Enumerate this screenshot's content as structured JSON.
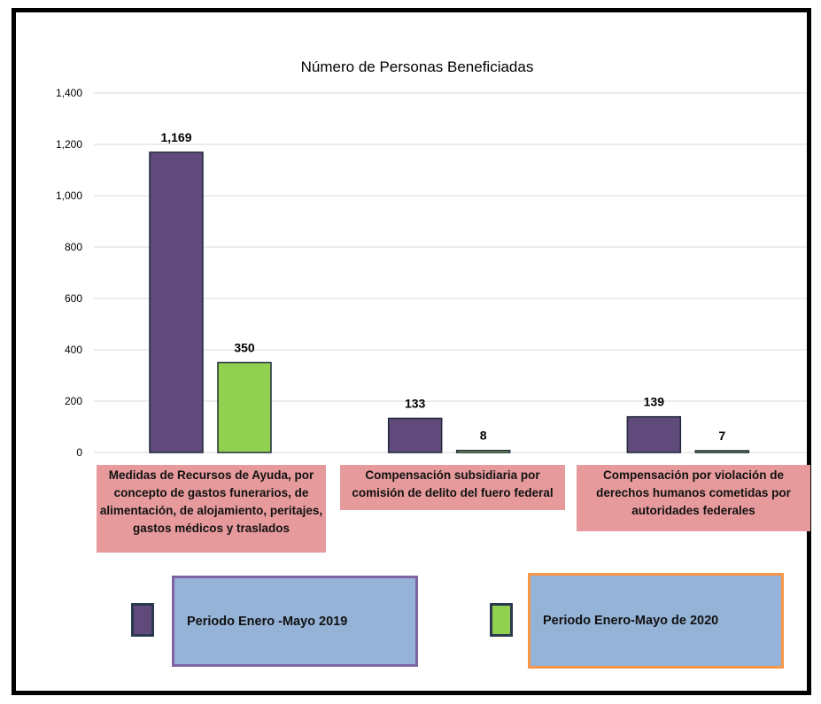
{
  "chart_data": {
    "type": "bar",
    "title": "Número de Personas Beneficiadas",
    "categories": [
      "Medidas de Recursos de Ayuda, por concepto de gastos funerarios, de alimentación, de alojamiento, peritajes, gastos médicos y traslados",
      "Compensación subsidiaria por comisión de delito del fuero federal",
      "Compensación por violación de derechos humanos cometidas por autoridades federales"
    ],
    "series": [
      {
        "name": "Periodo Enero -Mayo 2019",
        "values": [
          1169,
          133,
          139
        ],
        "labels": [
          "1,169",
          "133",
          "139"
        ],
        "color": "#604a7b"
      },
      {
        "name": "Periodo Enero-Mayo de 2020",
        "values": [
          350,
          8,
          7
        ],
        "labels": [
          "350",
          "8",
          "7"
        ],
        "color": "#92d050"
      }
    ],
    "ylim": [
      0,
      1400
    ],
    "yticks": [
      0,
      200,
      400,
      600,
      800,
      1000,
      1200,
      1400
    ],
    "ytick_labels": [
      "0",
      "200",
      "400",
      "600",
      "800",
      "1,000",
      "1,200",
      "1,400"
    ],
    "grid": true,
    "legend": "bottom"
  },
  "colors": {
    "category_bg": "#e69a9c",
    "legend_bg": "#95b3d7",
    "legend_border_2019": "#8064a2",
    "legend_border_2020": "#f79646",
    "gridline": "#d9d9d9"
  }
}
